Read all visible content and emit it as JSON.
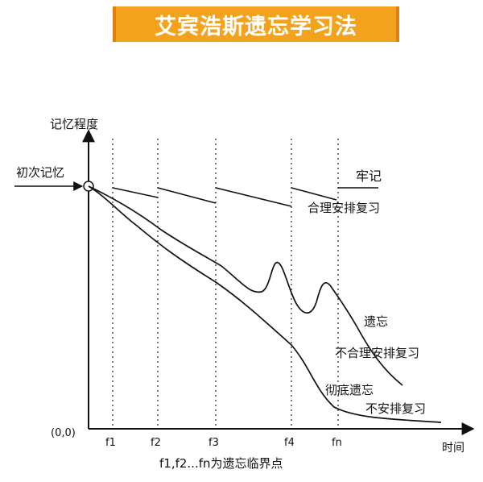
{
  "title": "艾宾浩斯遗忘学习法",
  "axes": {
    "y_label": "记忆程度",
    "x_label": "时间",
    "origin": "(0,0)",
    "initial_memory": "初次记忆",
    "ticks": [
      "f1",
      "f2",
      "f3",
      "f4",
      "fn"
    ]
  },
  "curves": {
    "top_label_1": "牢记",
    "top_label_2": "合理安排复习",
    "middle_label_1": "遗忘",
    "middle_label_2": "不合理安排复习",
    "bottom_label_1": "彻底遗忘",
    "bottom_label_2": "不安排复习"
  },
  "caption": "f1,f2...fn为遗忘临界点",
  "colors": {
    "banner": "#f3a21d",
    "banner_border": "#e07e12",
    "line": "#111111"
  }
}
